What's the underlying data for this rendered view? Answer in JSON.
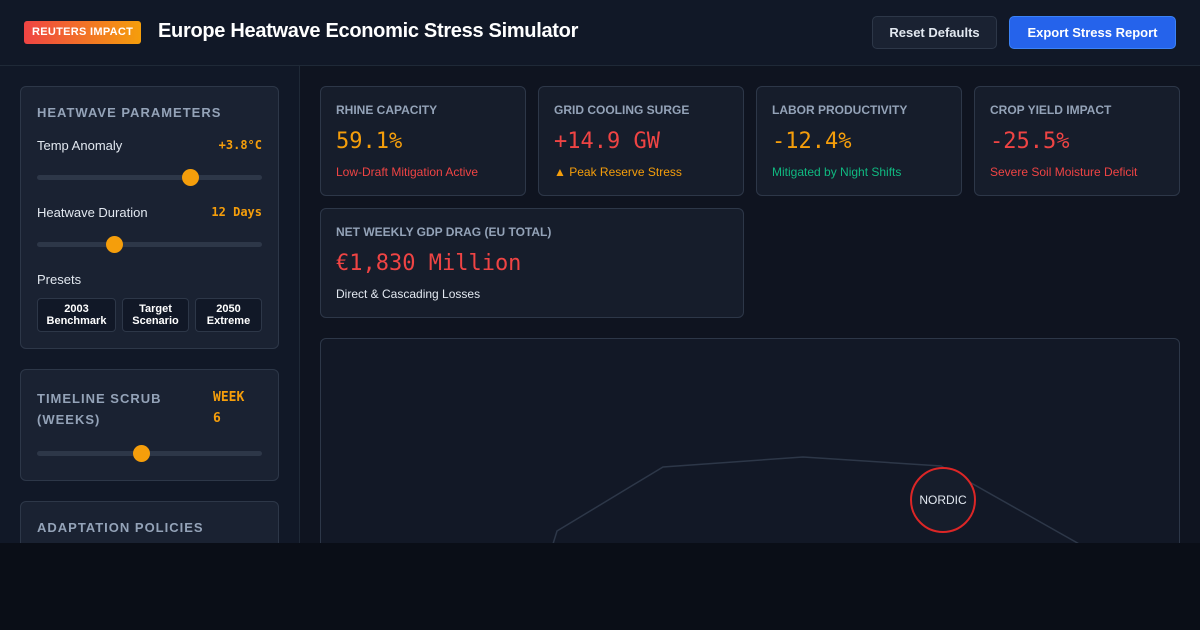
{
  "header": {
    "badge": "REUTERS IMPACT",
    "title": "Europe Heatwave Economic Stress Simulator",
    "reset_label": "Reset Defaults",
    "export_label": "Export Stress Report"
  },
  "params": {
    "title": "Heatwave Parameters",
    "temp": {
      "label": "Temp Anomaly",
      "value": "+3.8°C",
      "level": 0.68
    },
    "duration": {
      "label": "Heatwave Duration",
      "value": "12 Days",
      "level": 0.34
    },
    "presets_label": "Presets",
    "presets": [
      {
        "line1": "2003",
        "line2": "Benchmark"
      },
      {
        "line1": "Target",
        "line2": "Scenario"
      },
      {
        "line1": "2050",
        "line2": "Extreme"
      }
    ]
  },
  "timeline": {
    "title_line1": "Timeline Scrub",
    "title_line2": "(Weeks)",
    "value_line1": "WEEK",
    "value_line2": "6",
    "level": 0.46
  },
  "adaptation": {
    "title": "Adaptation Policies"
  },
  "kpis": [
    {
      "label": "RHINE CAPACITY",
      "value": "59.1%",
      "note": "Low-Draft Mitigation Active",
      "value_color": "#f59e0b",
      "note_color": "#ef4444"
    },
    {
      "label": "GRID COOLING SURGE",
      "value": "+14.9 GW",
      "note": "▲ Peak Reserve Stress",
      "value_color": "#ef4444",
      "note_color": "#f59e0b"
    },
    {
      "label": "LABOR PRODUCTIVITY",
      "value": "-12.4%",
      "note": "Mitigated by Night Shifts",
      "value_color": "#f59e0b",
      "note_color": "#10b981"
    },
    {
      "label": "CROP YIELD IMPACT",
      "value": "-25.5%",
      "note": "Severe Soil Moisture Deficit",
      "value_color": "#ef4444",
      "note_color": "#ef4444"
    }
  ],
  "gdp": {
    "label": "NET WEEKLY GDP DRAG (EU TOTAL)",
    "value": "€1,830 Million",
    "note": "Direct & Cascading Losses",
    "value_color": "#ef4444"
  },
  "map": {
    "region_label": "NORDIC",
    "node_color": "#dc2626"
  }
}
